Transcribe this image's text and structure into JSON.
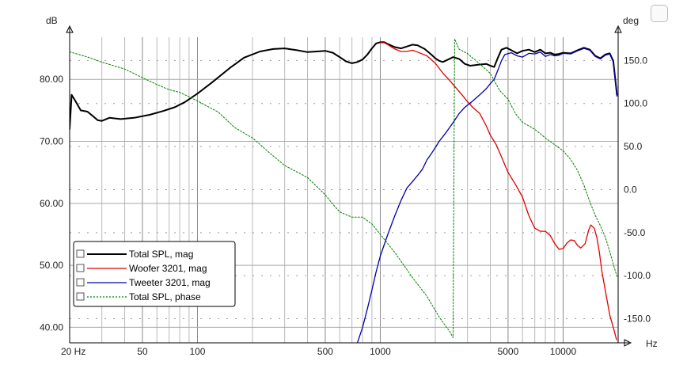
{
  "chart_data": {
    "type": "line",
    "title": "",
    "xlabel": "Hz",
    "ylabel_left": "dB",
    "ylabel_right": "deg",
    "x_scale": "log",
    "xlim": [
      20,
      20000
    ],
    "ylim_left": [
      37.5,
      86.8
    ],
    "ylim_right": [
      -178,
      177
    ],
    "x_ticks": [
      {
        "v": 20,
        "label": "20 Hz"
      },
      {
        "v": 50,
        "label": "50"
      },
      {
        "v": 100,
        "label": "100"
      },
      {
        "v": 500,
        "label": "500"
      },
      {
        "v": 1000,
        "label": "1000"
      },
      {
        "v": 5000,
        "label": "5000"
      },
      {
        "v": 10000,
        "label": "10000"
      }
    ],
    "y_ticks_left": [
      {
        "v": 80,
        "label": "80.00"
      },
      {
        "v": 70,
        "label": "70.00"
      },
      {
        "v": 60,
        "label": "60.00"
      },
      {
        "v": 50,
        "label": "50.00"
      },
      {
        "v": 40,
        "label": "40.00"
      }
    ],
    "y_ticks_right": [
      {
        "v": 150,
        "label": "150.0"
      },
      {
        "v": 100,
        "label": "100.0"
      },
      {
        "v": 50,
        "label": "50.0"
      },
      {
        "v": 0,
        "label": "0.0"
      },
      {
        "v": -50,
        "label": "-50.0"
      },
      {
        "v": -100,
        "label": "-100.0"
      },
      {
        "v": -150,
        "label": "-150.0"
      }
    ],
    "grid": true,
    "legend_position": "bottom-left",
    "series": [
      {
        "name": "Total SPL, mag",
        "color": "#000000",
        "axis": "left",
        "style": "solid",
        "points": [
          [
            20,
            72
          ],
          [
            20.5,
            77.5
          ],
          [
            21.5,
            76.5
          ],
          [
            23,
            75
          ],
          [
            25,
            74.8
          ],
          [
            27,
            74
          ],
          [
            28.5,
            73.4
          ],
          [
            30,
            73.3
          ],
          [
            33,
            73.8
          ],
          [
            38,
            73.6
          ],
          [
            45,
            73.8
          ],
          [
            55,
            74.3
          ],
          [
            65,
            74.9
          ],
          [
            75,
            75.5
          ],
          [
            85,
            76.3
          ],
          [
            100,
            77.7
          ],
          [
            120,
            79.5
          ],
          [
            150,
            81.8
          ],
          [
            180,
            83.5
          ],
          [
            220,
            84.5
          ],
          [
            260,
            84.9
          ],
          [
            300,
            85
          ],
          [
            350,
            84.7
          ],
          [
            400,
            84.4
          ],
          [
            450,
            84.5
          ],
          [
            500,
            84.6
          ],
          [
            550,
            84.3
          ],
          [
            600,
            83.6
          ],
          [
            650,
            82.9
          ],
          [
            700,
            82.6
          ],
          [
            750,
            82.8
          ],
          [
            800,
            83.2
          ],
          [
            850,
            84
          ],
          [
            900,
            85
          ],
          [
            950,
            85.8
          ],
          [
            1000,
            86
          ],
          [
            1050,
            86
          ],
          [
            1100,
            85.7
          ],
          [
            1200,
            85.2
          ],
          [
            1300,
            85
          ],
          [
            1400,
            85.3
          ],
          [
            1500,
            85.6
          ],
          [
            1600,
            85.5
          ],
          [
            1750,
            84.9
          ],
          [
            1900,
            84
          ],
          [
            2000,
            83.4
          ],
          [
            2100,
            83
          ],
          [
            2200,
            82.8
          ],
          [
            2350,
            83.2
          ],
          [
            2500,
            83.6
          ],
          [
            2700,
            83.3
          ],
          [
            2900,
            82.5
          ],
          [
            3100,
            82.2
          ],
          [
            3300,
            82.3
          ],
          [
            3500,
            82.4
          ],
          [
            3800,
            82.5
          ],
          [
            4000,
            82.2
          ],
          [
            4200,
            82
          ],
          [
            4400,
            83.5
          ],
          [
            4600,
            84.8
          ],
          [
            4900,
            85.1
          ],
          [
            5200,
            84.7
          ],
          [
            5600,
            84.2
          ],
          [
            6000,
            84.6
          ],
          [
            6500,
            84.8
          ],
          [
            7000,
            84.4
          ],
          [
            7500,
            84.8
          ],
          [
            8000,
            84.2
          ],
          [
            8500,
            84.3
          ],
          [
            9000,
            84
          ],
          [
            9500,
            84.1
          ],
          [
            10000,
            84.3
          ],
          [
            11000,
            84.2
          ],
          [
            12000,
            84.7
          ],
          [
            13000,
            85.1
          ],
          [
            14000,
            84.8
          ],
          [
            15000,
            83.8
          ],
          [
            16000,
            83.4
          ],
          [
            17000,
            84
          ],
          [
            18000,
            84.2
          ],
          [
            18800,
            83
          ],
          [
            19300,
            80
          ],
          [
            19700,
            77.5
          ]
        ]
      },
      {
        "name": "Woofer 3201, mag",
        "color": "#e00000",
        "axis": "left",
        "style": "solid",
        "points": [
          [
            1000,
            85.9
          ],
          [
            1050,
            85.9
          ],
          [
            1100,
            85.6
          ],
          [
            1200,
            84.9
          ],
          [
            1300,
            84.5
          ],
          [
            1400,
            84.5
          ],
          [
            1500,
            84.7
          ],
          [
            1600,
            84.4
          ],
          [
            1800,
            83.8
          ],
          [
            2000,
            82.6
          ],
          [
            2200,
            81
          ],
          [
            2400,
            79.8
          ],
          [
            2600,
            78.6
          ],
          [
            2800,
            77.5
          ],
          [
            3000,
            76.4
          ],
          [
            3200,
            75.5
          ],
          [
            3500,
            74.5
          ],
          [
            3800,
            72.5
          ],
          [
            4000,
            71
          ],
          [
            4300,
            69.5
          ],
          [
            4600,
            67.5
          ],
          [
            5000,
            65
          ],
          [
            5500,
            63
          ],
          [
            6000,
            61
          ],
          [
            6500,
            58
          ],
          [
            7000,
            56
          ],
          [
            7500,
            55.5
          ],
          [
            8000,
            55.5
          ],
          [
            8500,
            54.8
          ],
          [
            9000,
            53.5
          ],
          [
            9500,
            52.6
          ],
          [
            10000,
            52.7
          ],
          [
            10500,
            53.6
          ],
          [
            11000,
            54.1
          ],
          [
            11500,
            54
          ],
          [
            12000,
            53.2
          ],
          [
            12500,
            52.8
          ],
          [
            13200,
            53.5
          ],
          [
            13800,
            55.7
          ],
          [
            14200,
            56.5
          ],
          [
            14800,
            56
          ],
          [
            15300,
            54.5
          ],
          [
            15800,
            52
          ],
          [
            16300,
            49
          ],
          [
            17000,
            46
          ],
          [
            18000,
            42
          ],
          [
            19000,
            39.5
          ],
          [
            19600,
            38
          ]
        ]
      },
      {
        "name": "Tweeter 3201, mag",
        "color": "#0000aa",
        "axis": "left",
        "style": "solid",
        "points": [
          [
            750,
            37.5
          ],
          [
            800,
            40
          ],
          [
            850,
            43
          ],
          [
            900,
            46
          ],
          [
            950,
            49
          ],
          [
            1000,
            51.5
          ],
          [
            1100,
            55
          ],
          [
            1200,
            58
          ],
          [
            1300,
            60.5
          ],
          [
            1400,
            62.5
          ],
          [
            1500,
            63.5
          ],
          [
            1600,
            64.5
          ],
          [
            1700,
            65.5
          ],
          [
            1800,
            67
          ],
          [
            1900,
            68
          ],
          [
            2000,
            69
          ],
          [
            2100,
            70
          ],
          [
            2300,
            71.5
          ],
          [
            2500,
            73
          ],
          [
            2700,
            74.5
          ],
          [
            2900,
            75.5
          ],
          [
            3200,
            76.5
          ],
          [
            3500,
            77.5
          ],
          [
            3800,
            78.5
          ],
          [
            4000,
            79.3
          ],
          [
            4200,
            80
          ],
          [
            4400,
            81.5
          ],
          [
            4600,
            83
          ],
          [
            4800,
            84
          ],
          [
            5200,
            84.3
          ],
          [
            5600,
            83.8
          ],
          [
            6000,
            83.6
          ],
          [
            6500,
            84.2
          ],
          [
            7000,
            84.1
          ],
          [
            7500,
            84.4
          ],
          [
            8000,
            83.7
          ],
          [
            8500,
            84
          ],
          [
            9000,
            83.8
          ],
          [
            9500,
            83.9
          ],
          [
            10000,
            84.2
          ],
          [
            11000,
            84.1
          ],
          [
            12000,
            84.6
          ],
          [
            13000,
            85
          ],
          [
            14000,
            84.7
          ],
          [
            15000,
            83.7
          ],
          [
            16000,
            83.3
          ],
          [
            17000,
            83.9
          ],
          [
            18000,
            84.1
          ],
          [
            18800,
            82.8
          ],
          [
            19300,
            79.8
          ],
          [
            19700,
            77.3
          ]
        ]
      },
      {
        "name": "Total SPL, phase",
        "color": "#008000",
        "axis": "right",
        "style": "dotted",
        "points": [
          [
            20,
            160
          ],
          [
            25,
            154
          ],
          [
            30,
            148
          ],
          [
            40,
            140
          ],
          [
            50,
            130
          ],
          [
            60,
            122
          ],
          [
            70,
            116
          ],
          [
            80,
            113
          ],
          [
            100,
            103
          ],
          [
            130,
            90
          ],
          [
            160,
            72
          ],
          [
            200,
            60
          ],
          [
            250,
            42
          ],
          [
            300,
            28
          ],
          [
            400,
            14
          ],
          [
            500,
            -6
          ],
          [
            550,
            -17
          ],
          [
            600,
            -26
          ],
          [
            700,
            -32
          ],
          [
            800,
            -32
          ],
          [
            900,
            -40
          ],
          [
            1000,
            -52
          ],
          [
            1200,
            -73
          ],
          [
            1500,
            -102
          ],
          [
            1800,
            -124
          ],
          [
            2100,
            -148
          ],
          [
            2400,
            -165
          ],
          [
            2500,
            -172
          ],
          [
            2550,
            175
          ],
          [
            2700,
            163
          ],
          [
            3000,
            158
          ],
          [
            3500,
            146
          ],
          [
            4000,
            135
          ],
          [
            4500,
            115
          ],
          [
            5000,
            105
          ],
          [
            5500,
            88
          ],
          [
            6000,
            78
          ],
          [
            7000,
            70
          ],
          [
            8000,
            60
          ],
          [
            9000,
            52
          ],
          [
            10000,
            45
          ],
          [
            11000,
            35
          ],
          [
            12000,
            22
          ],
          [
            13000,
            5
          ],
          [
            14000,
            -14
          ],
          [
            15000,
            -30
          ],
          [
            16000,
            -42
          ],
          [
            17000,
            -55
          ],
          [
            18000,
            -72
          ],
          [
            19000,
            -90
          ],
          [
            19800,
            -102
          ]
        ]
      }
    ]
  }
}
